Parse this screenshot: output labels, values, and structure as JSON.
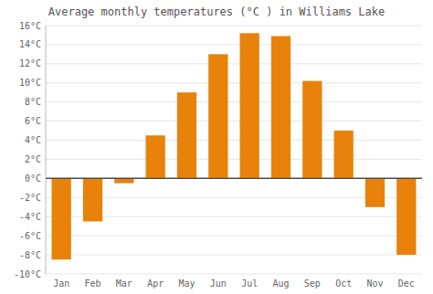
{
  "chart_data": {
    "type": "bar",
    "title": "Average monthly temperatures (°C ) in Williams Lake",
    "categories": [
      "Jan",
      "Feb",
      "Mar",
      "Apr",
      "May",
      "Jun",
      "Jul",
      "Aug",
      "Sep",
      "Oct",
      "Nov",
      "Dec"
    ],
    "values": [
      -8.5,
      -4.5,
      -0.5,
      4.5,
      9.0,
      13.0,
      15.2,
      14.9,
      10.2,
      5.0,
      -3.0,
      -8.0
    ],
    "color": "#E8820A",
    "ylim": [
      -10,
      16
    ],
    "yticks": [
      {
        "value": -10,
        "label": "-10°C"
      },
      {
        "value": -8,
        "label": "-8°C"
      },
      {
        "value": -6,
        "label": "-6°C"
      },
      {
        "value": -4,
        "label": "-4°C"
      },
      {
        "value": -2,
        "label": "-2°C"
      },
      {
        "value": 0,
        "label": "0°C"
      },
      {
        "value": 2,
        "label": "2°C"
      },
      {
        "value": 4,
        "label": "4°C"
      },
      {
        "value": 6,
        "label": "6°C"
      },
      {
        "value": 8,
        "label": "8°C"
      },
      {
        "value": 10,
        "label": "10°C"
      },
      {
        "value": 12,
        "label": "12°C"
      },
      {
        "value": 14,
        "label": "14°C"
      },
      {
        "value": 16,
        "label": "16°C"
      }
    ],
    "grid": true
  }
}
